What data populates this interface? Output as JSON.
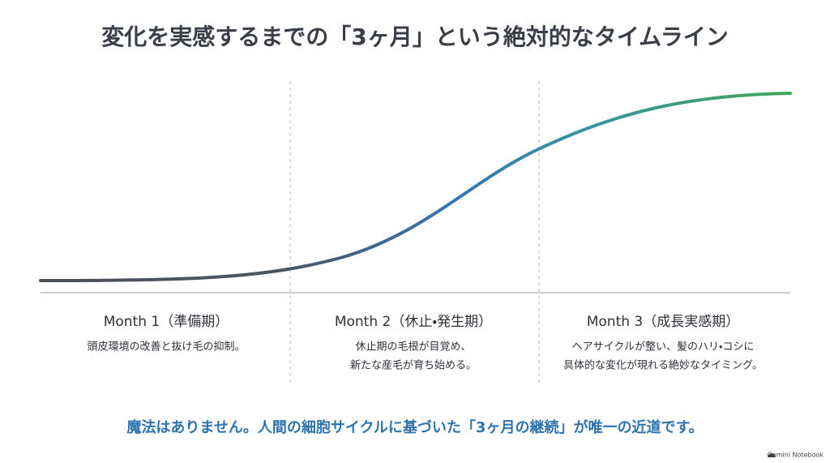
{
  "title": "変化を実感するまでの「3ヶ月」という絶対的なタイムライン",
  "columns": [
    {
      "heading": "Month 1（準備期）",
      "lines": [
        "頭皮環境の改善と抜け毛の抑制。"
      ]
    },
    {
      "heading": "Month 2（休止・発生期）",
      "lines": [
        "休止期の毛根が目覚め、",
        "新たな産毛が育ち始める。"
      ]
    },
    {
      "heading": "Month 3（成長実感期）",
      "lines": [
        "ヘアサイクルが整い、髪のハリ・コシに",
        "具体的な変化が現れる絶妙なタイミング。"
      ]
    }
  ],
  "message": "魔法はありません。人間の細胞サイクルに基づいた「3ヶ月の継続」が唯一の近道です。",
  "brand": "Gemini Notebook"
}
